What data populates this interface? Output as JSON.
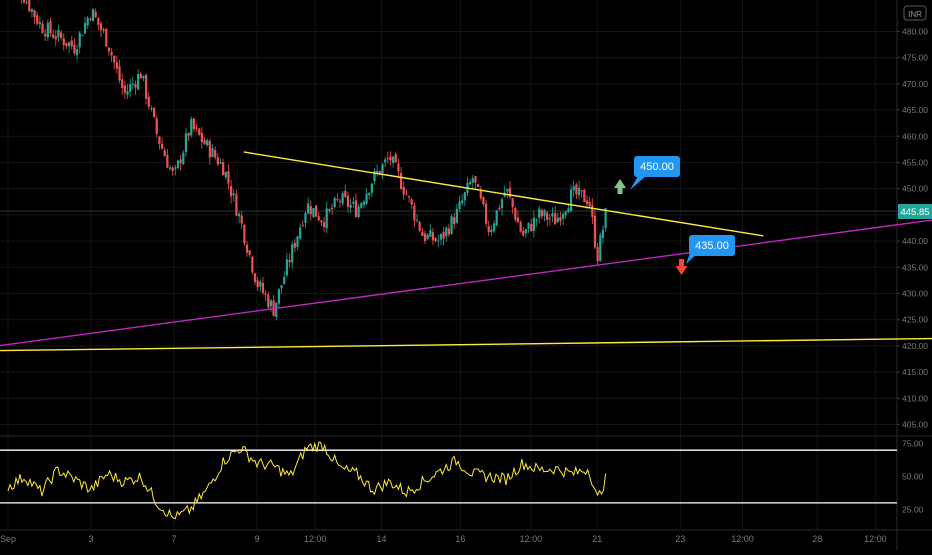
{
  "currency_badge": "INR",
  "colors": {
    "background": "#000000",
    "grid": "#141414",
    "candle_up": "#26a69a",
    "candle_down": "#ef5350",
    "trendline_upper": "#ffeb3b",
    "trendline_lower": "#c026c0",
    "support_line": "#ffeb3b",
    "callout_bg": "#2196f3",
    "arrow_up": "#81c784",
    "arrow_down": "#f44336",
    "rsi_line": "#ffeb3b",
    "rsi_bands": "#ffffff",
    "price_badge": "#26a69a",
    "axis_text": "#7a7a7a"
  },
  "annotations": {
    "upper_target": "450.00",
    "lower_target": "435.00"
  },
  "chart_data": [
    {
      "type": "candlestick",
      "title": "",
      "xlabel": "",
      "ylabel": "",
      "ylim": [
        403,
        486
      ],
      "y_ticks": [
        "480.00",
        "475.00",
        "470.00",
        "465.00",
        "460.00",
        "455.00",
        "450.00",
        "445.00",
        "440.00",
        "435.00",
        "430.00",
        "425.00",
        "420.00",
        "415.00",
        "410.00",
        "405.00"
      ],
      "x_ticks": [
        "Sep",
        "3",
        "7",
        "9",
        "12:00",
        "14",
        "16",
        "12:00",
        "21",
        "23",
        "12:00",
        "28",
        "12:00"
      ],
      "last_price": "445.85",
      "price_path": [
        [
          0,
          492
        ],
        [
          2,
          481
        ],
        [
          4,
          477
        ],
        [
          5,
          484
        ],
        [
          6,
          478
        ],
        [
          7,
          468
        ],
        [
          8,
          472
        ],
        [
          9,
          460
        ],
        [
          10,
          452
        ],
        [
          11,
          462
        ],
        [
          12,
          458
        ],
        [
          13,
          454
        ],
        [
          14,
          444
        ],
        [
          15,
          432
        ],
        [
          16,
          427
        ],
        [
          17,
          437
        ],
        [
          18,
          447
        ],
        [
          19,
          444
        ],
        [
          20,
          448
        ],
        [
          21,
          446
        ],
        [
          22,
          452
        ],
        [
          23,
          456
        ],
        [
          24,
          449
        ],
        [
          25,
          441
        ],
        [
          26,
          440
        ],
        [
          27,
          445
        ],
        [
          28,
          452
        ],
        [
          29,
          442
        ],
        [
          30,
          450
        ],
        [
          31,
          441
        ],
        [
          32,
          445
        ],
        [
          33,
          444
        ],
        [
          34,
          449
        ],
        [
          35,
          448
        ],
        [
          35.5,
          437
        ],
        [
          36,
          445
        ]
      ],
      "trendlines": [
        {
          "name": "descending resistance",
          "from": [
            14.2,
            457
          ],
          "to": [
            45.5,
            441
          ]
        },
        {
          "name": "ascending support",
          "from": [
            -3,
            419
          ],
          "to": [
            58,
            445
          ]
        },
        {
          "name": "horizontal support",
          "from": [
            -3,
            419
          ],
          "to": [
            58,
            421.5
          ]
        }
      ]
    },
    {
      "type": "line",
      "title": "",
      "ylim": [
        17,
        80
      ],
      "y_ticks": [
        "75.00",
        "50.00",
        "25.00"
      ],
      "bands": [
        70,
        30
      ],
      "path": [
        [
          0,
          42
        ],
        [
          1,
          50
        ],
        [
          2,
          38
        ],
        [
          3,
          55
        ],
        [
          4,
          48
        ],
        [
          5,
          40
        ],
        [
          6,
          52
        ],
        [
          7,
          46
        ],
        [
          8,
          50
        ],
        [
          9,
          30
        ],
        [
          10,
          18
        ],
        [
          11,
          25
        ],
        [
          12,
          40
        ],
        [
          13,
          62
        ],
        [
          14,
          72
        ],
        [
          15,
          60
        ],
        [
          16,
          58
        ],
        [
          17,
          50
        ],
        [
          18,
          72
        ],
        [
          19,
          74
        ],
        [
          20,
          56
        ],
        [
          21,
          52
        ],
        [
          22,
          40
        ],
        [
          23,
          46
        ],
        [
          24,
          38
        ],
        [
          25,
          46
        ],
        [
          26,
          54
        ],
        [
          27,
          62
        ],
        [
          28,
          52
        ],
        [
          29,
          50
        ],
        [
          30,
          48
        ],
        [
          31,
          60
        ],
        [
          32,
          55
        ],
        [
          33,
          56
        ],
        [
          34,
          52
        ],
        [
          35,
          56
        ],
        [
          35.5,
          32
        ],
        [
          36,
          48
        ]
      ]
    }
  ]
}
